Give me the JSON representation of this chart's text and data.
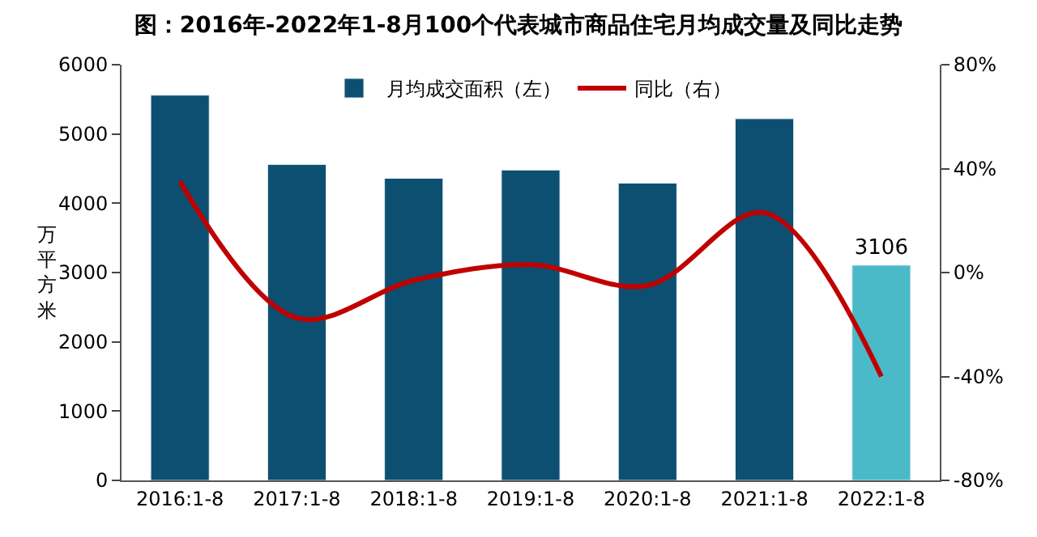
{
  "chart_data": {
    "type": "bar",
    "title": "图：2016年-2022年1-8月100个代表城市商品住宅月均成交量及同比走势",
    "categories": [
      "2016:1-8",
      "2017:1-8",
      "2018:1-8",
      "2019:1-8",
      "2020:1-8",
      "2021:1-8",
      "2022:1-8"
    ],
    "ylabel": "万平方米",
    "series": [
      {
        "name": "月均成交面积（左）",
        "color": "#0d4f70",
        "colors": [
          "#0d4f70",
          "#0d4f70",
          "#0d4f70",
          "#0d4f70",
          "#0d4f70",
          "#0d4f70",
          "#4bbac8"
        ],
        "values": [
          5560,
          4560,
          4360,
          4480,
          4290,
          5220,
          3106
        ],
        "value_labels": [
          null,
          null,
          null,
          null,
          null,
          null,
          "3106"
        ]
      },
      {
        "name": "同比（右）",
        "type": "line",
        "axis": "y2",
        "color": "#c00000",
        "values": [
          35,
          -17.5,
          -3,
          3,
          -5,
          23,
          -40
        ]
      }
    ],
    "ylim": [
      0,
      6000
    ],
    "yticks": [
      0,
      1000,
      2000,
      3000,
      4000,
      5000,
      6000
    ],
    "y2lim": [
      -80,
      80
    ],
    "y2ticks": [
      {
        "value": -80,
        "label": "-80%"
      },
      {
        "value": -40,
        "label": "-40%"
      },
      {
        "value": 0,
        "label": "0%"
      },
      {
        "value": 40,
        "label": "40%"
      },
      {
        "value": 80,
        "label": "80%"
      }
    ],
    "legend": "top"
  }
}
